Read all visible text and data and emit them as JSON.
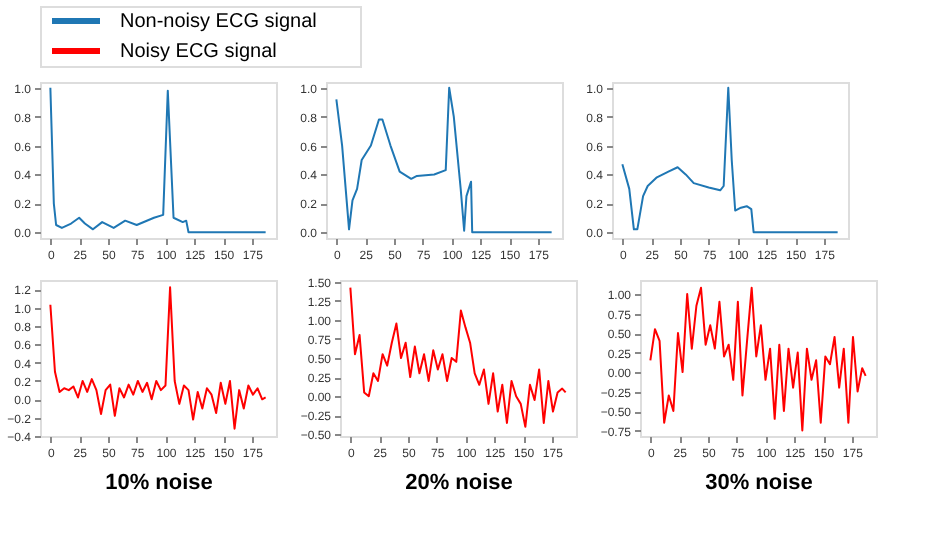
{
  "chart_data": [
    {
      "type": "line",
      "legend": "top",
      "grid": false,
      "xlim": [
        -9,
        196
      ],
      "xticks": [
        0,
        25,
        50,
        75,
        100,
        125,
        150,
        175
      ],
      "ylim": [
        -0.04,
        1.04
      ],
      "yticks": [
        {
          "value": 0.0,
          "label": "0.0"
        },
        0.2,
        0.4,
        0.6,
        0.8,
        {
          "value": 1.0,
          "label": "1.0"
        }
      ],
      "series": [
        {
          "name": "Non-noisy ECG signal",
          "color": "#1f77b4",
          "x": [
            0,
            3,
            5,
            10,
            18,
            25,
            30,
            37,
            45,
            55,
            65,
            75,
            90,
            98,
            102,
            107,
            115,
            118,
            120,
            187
          ],
          "values": [
            1.0,
            0.2,
            0.05,
            0.03,
            0.06,
            0.1,
            0.06,
            0.02,
            0.07,
            0.03,
            0.08,
            0.05,
            0.1,
            0.12,
            0.98,
            0.1,
            0.07,
            0.08,
            0.0,
            0.0
          ]
        }
      ]
    },
    {
      "type": "line",
      "grid": false,
      "xlim": [
        -9,
        196
      ],
      "xticks": [
        0,
        25,
        50,
        75,
        100,
        125,
        150,
        175
      ],
      "ylim": [
        -0.04,
        1.04
      ],
      "yticks": [
        {
          "value": 0.0,
          "label": "0.0"
        },
        0.2,
        0.4,
        0.6,
        0.8,
        {
          "value": 1.0,
          "label": "1.0"
        }
      ],
      "series": [
        {
          "color": "#1f77b4",
          "x": [
            0,
            5,
            11,
            14,
            18,
            22,
            30,
            37,
            40,
            47,
            55,
            65,
            70,
            85,
            95,
            98,
            102,
            108,
            111,
            113,
            117,
            118,
            187
          ],
          "values": [
            0.92,
            0.6,
            0.02,
            0.22,
            0.3,
            0.5,
            0.6,
            0.78,
            0.78,
            0.6,
            0.42,
            0.37,
            0.39,
            0.4,
            0.43,
            1.0,
            0.8,
            0.3,
            0.01,
            0.25,
            0.35,
            0.0,
            0.0
          ]
        }
      ]
    },
    {
      "type": "line",
      "grid": false,
      "xlim": [
        -9,
        196
      ],
      "xticks": [
        0,
        25,
        50,
        75,
        100,
        125,
        150,
        175
      ],
      "ylim": [
        -0.04,
        1.04
      ],
      "yticks": [
        {
          "value": 0.0,
          "label": "0.0"
        },
        0.2,
        0.4,
        0.6,
        0.8,
        {
          "value": 1.0,
          "label": "1.0"
        }
      ],
      "series": [
        {
          "color": "#1f77b4",
          "x": [
            0,
            6,
            10,
            13,
            18,
            22,
            30,
            40,
            48,
            55,
            62,
            75,
            85,
            88,
            92,
            95,
            98,
            103,
            108,
            112,
            114,
            187
          ],
          "values": [
            0.47,
            0.3,
            0.02,
            0.02,
            0.25,
            0.32,
            0.38,
            0.42,
            0.45,
            0.4,
            0.34,
            0.31,
            0.29,
            0.32,
            1.0,
            0.5,
            0.15,
            0.17,
            0.18,
            0.16,
            0.0,
            0.0
          ]
        }
      ]
    },
    {
      "type": "line",
      "legend": "top",
      "grid": false,
      "xlabel": "10% noise",
      "xlim": [
        -9,
        196
      ],
      "xticks": [
        0,
        25,
        50,
        75,
        100,
        125,
        150,
        175
      ],
      "ylim": [
        -0.4,
        1.3
      ],
      "yticks": [
        {
          "value": -0.4,
          "label": "−0.4"
        },
        {
          "value": -0.2,
          "label": "−0.2"
        },
        {
          "value": 0.0,
          "label": "0.0"
        },
        0.2,
        0.4,
        0.6,
        0.8,
        {
          "value": 1.0,
          "label": "1.0"
        },
        1.2
      ],
      "series": [
        {
          "name": "Noisy ECG signal",
          "color": "#ff0000",
          "x": [
            0,
            4,
            8,
            12,
            16,
            20,
            24,
            28,
            32,
            36,
            40,
            44,
            48,
            52,
            56,
            60,
            64,
            68,
            72,
            76,
            80,
            84,
            88,
            92,
            96,
            100,
            104,
            108,
            112,
            116,
            120,
            124,
            128,
            132,
            136,
            140,
            144,
            148,
            152,
            156,
            160,
            164,
            168,
            172,
            176,
            180,
            184,
            187
          ],
          "values": [
            1.03,
            0.3,
            0.08,
            0.12,
            0.1,
            0.14,
            0.02,
            0.2,
            0.08,
            0.22,
            0.1,
            -0.16,
            0.1,
            0.16,
            -0.18,
            0.12,
            0.02,
            0.16,
            0.05,
            0.2,
            0.08,
            0.18,
            0.0,
            0.2,
            0.1,
            0.15,
            1.22,
            0.2,
            -0.05,
            0.15,
            0.1,
            -0.22,
            0.08,
            -0.1,
            0.12,
            0.05,
            -0.15,
            0.18,
            -0.05,
            0.2,
            -0.32,
            0.1,
            -0.1,
            0.15,
            0.05,
            0.12,
            0.0,
            0.02
          ]
        }
      ]
    },
    {
      "type": "line",
      "grid": false,
      "xlabel": "20% noise",
      "xlim": [
        -9,
        196
      ],
      "xticks": [
        0,
        25,
        50,
        75,
        100,
        125,
        150,
        175
      ],
      "ylim": [
        -0.52,
        1.52
      ],
      "yticks": [
        {
          "value": -0.5,
          "label": "−0.50"
        },
        {
          "value": -0.25,
          "label": "−0.25"
        },
        {
          "value": 0.0,
          "label": "0.00"
        },
        0.25,
        {
          "value": 0.5,
          "label": "0.50"
        },
        0.75,
        {
          "value": 1.0,
          "label": "1.00"
        },
        1.25,
        {
          "value": 1.5,
          "label": "1.50"
        }
      ],
      "series": [
        {
          "color": "#ff0000",
          "x": [
            0,
            4,
            8,
            12,
            16,
            20,
            24,
            28,
            32,
            36,
            40,
            44,
            48,
            52,
            56,
            60,
            64,
            68,
            72,
            76,
            80,
            84,
            88,
            92,
            96,
            100,
            104,
            108,
            112,
            116,
            120,
            124,
            128,
            132,
            136,
            140,
            144,
            148,
            152,
            156,
            160,
            164,
            168,
            172,
            176,
            180,
            184,
            187
          ],
          "values": [
            1.42,
            0.55,
            0.8,
            0.05,
            0.0,
            0.3,
            0.2,
            0.55,
            0.4,
            0.7,
            0.95,
            0.5,
            0.7,
            0.25,
            0.65,
            0.3,
            0.55,
            0.2,
            0.6,
            0.35,
            0.55,
            0.2,
            0.5,
            0.45,
            1.12,
            0.9,
            0.7,
            0.3,
            0.15,
            0.35,
            -0.1,
            0.3,
            -0.2,
            0.15,
            -0.35,
            0.2,
            0.0,
            -0.1,
            -0.4,
            0.15,
            -0.05,
            0.35,
            -0.35,
            0.2,
            -0.2,
            0.05,
            0.1,
            0.05
          ]
        }
      ]
    },
    {
      "type": "line",
      "grid": false,
      "xlabel": "30% noise",
      "xlim": [
        -9,
        196
      ],
      "xticks": [
        0,
        25,
        50,
        75,
        100,
        125,
        150,
        175
      ],
      "ylim": [
        -0.82,
        1.18
      ],
      "yticks": [
        {
          "value": -0.75,
          "label": "−0.75"
        },
        {
          "value": -0.5,
          "label": "−0.50"
        },
        {
          "value": -0.25,
          "label": "−0.25"
        },
        {
          "value": 0.0,
          "label": "0.00"
        },
        0.25,
        {
          "value": 0.5,
          "label": "0.50"
        },
        0.75,
        {
          "value": 1.0,
          "label": "1.00"
        }
      ],
      "series": [
        {
          "color": "#ff0000",
          "x": [
            0,
            4,
            8,
            12,
            16,
            20,
            24,
            28,
            32,
            36,
            40,
            44,
            48,
            52,
            56,
            60,
            64,
            68,
            72,
            76,
            80,
            84,
            88,
            92,
            96,
            100,
            104,
            108,
            112,
            116,
            120,
            124,
            128,
            132,
            136,
            140,
            144,
            148,
            152,
            156,
            160,
            164,
            168,
            172,
            176,
            180,
            184,
            187
          ],
          "values": [
            0.15,
            0.55,
            0.4,
            -0.65,
            -0.3,
            -0.5,
            0.5,
            0.0,
            1.0,
            0.3,
            0.85,
            1.08,
            0.35,
            0.6,
            0.3,
            0.9,
            0.2,
            0.35,
            -0.1,
            0.9,
            -0.3,
            0.4,
            1.08,
            0.2,
            0.6,
            -0.1,
            0.3,
            -0.6,
            0.35,
            -0.5,
            0.3,
            -0.2,
            0.25,
            -0.75,
            0.3,
            -0.1,
            0.15,
            -0.65,
            0.2,
            0.1,
            0.45,
            -0.2,
            0.3,
            -0.65,
            0.45,
            -0.25,
            0.05,
            -0.05
          ]
        }
      ]
    }
  ]
}
